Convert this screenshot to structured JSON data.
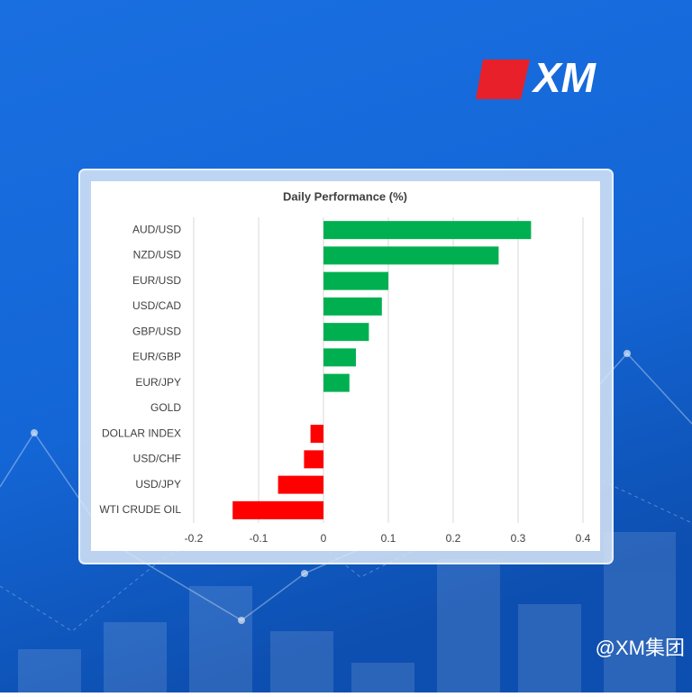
{
  "logo": "XM",
  "watermark": "@XM集团",
  "chart_data": {
    "type": "hbar",
    "title": "Daily Performance (%)",
    "categories": [
      "AUD/USD",
      "NZD/USD",
      "EUR/USD",
      "USD/CAD",
      "GBP/USD",
      "EUR/GBP",
      "EUR/JPY",
      "GOLD",
      "DOLLAR INDEX",
      "USD/CHF",
      "USD/JPY",
      "WTI CRUDE OIL"
    ],
    "values": [
      0.32,
      0.27,
      0.1,
      0.09,
      0.07,
      0.05,
      0.04,
      0,
      -0.02,
      -0.03,
      -0.07,
      -0.14
    ],
    "positive_color": "#00b050",
    "negative_color": "#ff0000",
    "xlim": [
      -0.2,
      0.4
    ],
    "xticks": [
      -0.2,
      -0.1,
      0,
      0.1,
      0.2,
      0.3,
      0.4
    ],
    "grid": true
  }
}
